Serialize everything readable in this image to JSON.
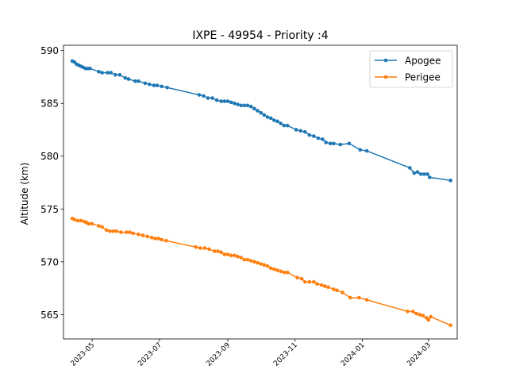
{
  "chart_data": {
    "type": "line",
    "title": "IXPE - 49954 - Priority :4",
    "xlabel": "",
    "ylabel": "Altitude (km)",
    "xlim": [
      "2023-04-05",
      "2024-03-27"
    ],
    "ylim": [
      562.7,
      590.5
    ],
    "x_ticks": [
      "2023-05",
      "2023-07",
      "2023-09",
      "2023-11",
      "2024-01",
      "2024-03"
    ],
    "y_ticks": [
      565,
      570,
      575,
      580,
      585,
      590
    ],
    "legend": "top-right",
    "grid": false,
    "colors": {
      "Apogee": "#1f77b4",
      "Perigee": "#ff7f0e"
    },
    "series": [
      {
        "name": "Apogee",
        "points": [
          [
            "2023-04-13",
            589.0
          ],
          [
            "2023-04-15",
            588.9
          ],
          [
            "2023-04-17",
            588.7
          ],
          [
            "2023-04-19",
            588.6
          ],
          [
            "2023-04-21",
            588.5
          ],
          [
            "2023-04-23",
            588.4
          ],
          [
            "2023-04-25",
            588.3
          ],
          [
            "2023-04-27",
            588.3
          ],
          [
            "2023-04-29",
            588.3
          ],
          [
            "2023-05-07",
            588.0
          ],
          [
            "2023-05-10",
            587.9
          ],
          [
            "2023-05-15",
            587.9
          ],
          [
            "2023-05-18",
            587.9
          ],
          [
            "2023-05-22",
            587.7
          ],
          [
            "2023-05-26",
            587.7
          ],
          [
            "2023-05-31",
            587.4
          ],
          [
            "2023-06-03",
            587.3
          ],
          [
            "2023-06-09",
            587.1
          ],
          [
            "2023-06-12",
            587.1
          ],
          [
            "2023-06-18",
            586.9
          ],
          [
            "2023-06-22",
            586.8
          ],
          [
            "2023-06-26",
            586.7
          ],
          [
            "2023-06-29",
            586.7
          ],
          [
            "2023-07-03",
            586.6
          ],
          [
            "2023-07-08",
            586.5
          ],
          [
            "2023-08-06",
            585.8
          ],
          [
            "2023-08-10",
            585.7
          ],
          [
            "2023-08-14",
            585.5
          ],
          [
            "2023-08-18",
            585.5
          ],
          [
            "2023-08-22",
            585.3
          ],
          [
            "2023-08-26",
            585.2
          ],
          [
            "2023-08-29",
            585.2
          ],
          [
            "2023-09-01",
            585.2
          ],
          [
            "2023-09-04",
            585.1
          ],
          [
            "2023-09-07",
            585.0
          ],
          [
            "2023-09-10",
            584.9
          ],
          [
            "2023-09-13",
            584.8
          ],
          [
            "2023-09-16",
            584.8
          ],
          [
            "2023-09-19",
            584.8
          ],
          [
            "2023-09-22",
            584.7
          ],
          [
            "2023-09-25",
            584.5
          ],
          [
            "2023-09-28",
            584.3
          ],
          [
            "2023-10-01",
            584.1
          ],
          [
            "2023-10-04",
            583.9
          ],
          [
            "2023-10-07",
            583.7
          ],
          [
            "2023-10-10",
            583.6
          ],
          [
            "2023-10-13",
            583.4
          ],
          [
            "2023-10-16",
            583.3
          ],
          [
            "2023-10-19",
            583.1
          ],
          [
            "2023-10-22",
            582.9
          ],
          [
            "2023-10-25",
            582.9
          ],
          [
            "2023-11-02",
            582.5
          ],
          [
            "2023-11-06",
            582.4
          ],
          [
            "2023-11-10",
            582.3
          ],
          [
            "2023-11-14",
            582.0
          ],
          [
            "2023-11-18",
            581.9
          ],
          [
            "2023-11-22",
            581.7
          ],
          [
            "2023-11-26",
            581.6
          ],
          [
            "2023-11-29",
            581.3
          ],
          [
            "2023-12-03",
            581.2
          ],
          [
            "2023-12-06",
            581.2
          ],
          [
            "2023-12-12",
            581.1
          ],
          [
            "2023-12-20",
            581.2
          ],
          [
            "2023-12-30",
            580.6
          ],
          [
            "2024-01-05",
            580.5
          ],
          [
            "2024-02-13",
            578.9
          ],
          [
            "2024-02-17",
            578.4
          ],
          [
            "2024-02-20",
            578.5
          ],
          [
            "2024-02-23",
            578.3
          ],
          [
            "2024-02-26",
            578.3
          ],
          [
            "2024-02-29",
            578.3
          ],
          [
            "2024-03-02",
            578.0
          ],
          [
            "2024-03-21",
            577.7
          ]
        ]
      },
      {
        "name": "Perigee",
        "points": [
          [
            "2023-04-13",
            574.1
          ],
          [
            "2023-04-15",
            574.0
          ],
          [
            "2023-04-18",
            573.9
          ],
          [
            "2023-04-21",
            573.9
          ],
          [
            "2023-04-24",
            573.8
          ],
          [
            "2023-04-26",
            573.7
          ],
          [
            "2023-04-28",
            573.6
          ],
          [
            "2023-05-01",
            573.6
          ],
          [
            "2023-05-07",
            573.4
          ],
          [
            "2023-05-10",
            573.3
          ],
          [
            "2023-05-14",
            573.0
          ],
          [
            "2023-05-17",
            572.9
          ],
          [
            "2023-05-20",
            572.9
          ],
          [
            "2023-05-23",
            572.9
          ],
          [
            "2023-05-27",
            572.8
          ],
          [
            "2023-06-01",
            572.8
          ],
          [
            "2023-06-04",
            572.8
          ],
          [
            "2023-06-07",
            572.7
          ],
          [
            "2023-06-12",
            572.6
          ],
          [
            "2023-06-16",
            572.5
          ],
          [
            "2023-06-20",
            572.4
          ],
          [
            "2023-06-24",
            572.3
          ],
          [
            "2023-06-27",
            572.2
          ],
          [
            "2023-06-30",
            572.2
          ],
          [
            "2023-07-03",
            572.1
          ],
          [
            "2023-07-07",
            572.0
          ],
          [
            "2023-08-03",
            571.4
          ],
          [
            "2023-08-07",
            571.3
          ],
          [
            "2023-08-11",
            571.3
          ],
          [
            "2023-08-15",
            571.2
          ],
          [
            "2023-08-20",
            571.0
          ],
          [
            "2023-08-23",
            571.0
          ],
          [
            "2023-08-26",
            570.9
          ],
          [
            "2023-08-29",
            570.7
          ],
          [
            "2023-09-01",
            570.7
          ],
          [
            "2023-09-04",
            570.6
          ],
          [
            "2023-09-07",
            570.6
          ],
          [
            "2023-09-10",
            570.5
          ],
          [
            "2023-09-13",
            570.4
          ],
          [
            "2023-09-16",
            570.2
          ],
          [
            "2023-09-19",
            570.2
          ],
          [
            "2023-09-22",
            570.1
          ],
          [
            "2023-09-25",
            570.0
          ],
          [
            "2023-09-28",
            569.9
          ],
          [
            "2023-10-01",
            569.8
          ],
          [
            "2023-10-04",
            569.7
          ],
          [
            "2023-10-07",
            569.6
          ],
          [
            "2023-10-10",
            569.4
          ],
          [
            "2023-10-13",
            569.3
          ],
          [
            "2023-10-16",
            569.2
          ],
          [
            "2023-10-19",
            569.1
          ],
          [
            "2023-10-22",
            569.0
          ],
          [
            "2023-10-25",
            569.0
          ],
          [
            "2023-11-03",
            568.5
          ],
          [
            "2023-11-07",
            568.4
          ],
          [
            "2023-11-10",
            568.1
          ],
          [
            "2023-11-14",
            568.1
          ],
          [
            "2023-11-18",
            568.1
          ],
          [
            "2023-11-21",
            567.9
          ],
          [
            "2023-11-25",
            567.8
          ],
          [
            "2023-11-28",
            567.7
          ],
          [
            "2023-12-01",
            567.6
          ],
          [
            "2023-12-06",
            567.4
          ],
          [
            "2023-12-09",
            567.3
          ],
          [
            "2023-12-14",
            567.1
          ],
          [
            "2023-12-21",
            566.6
          ],
          [
            "2023-12-29",
            566.6
          ],
          [
            "2024-01-05",
            566.4
          ],
          [
            "2024-02-11",
            565.3
          ],
          [
            "2024-02-16",
            565.3
          ],
          [
            "2024-02-19",
            565.1
          ],
          [
            "2024-02-22",
            565.0
          ],
          [
            "2024-02-25",
            564.9
          ],
          [
            "2024-02-28",
            564.7
          ],
          [
            "2024-03-01",
            564.5
          ],
          [
            "2024-03-03",
            564.8
          ],
          [
            "2024-03-21",
            564.0
          ]
        ]
      }
    ]
  }
}
